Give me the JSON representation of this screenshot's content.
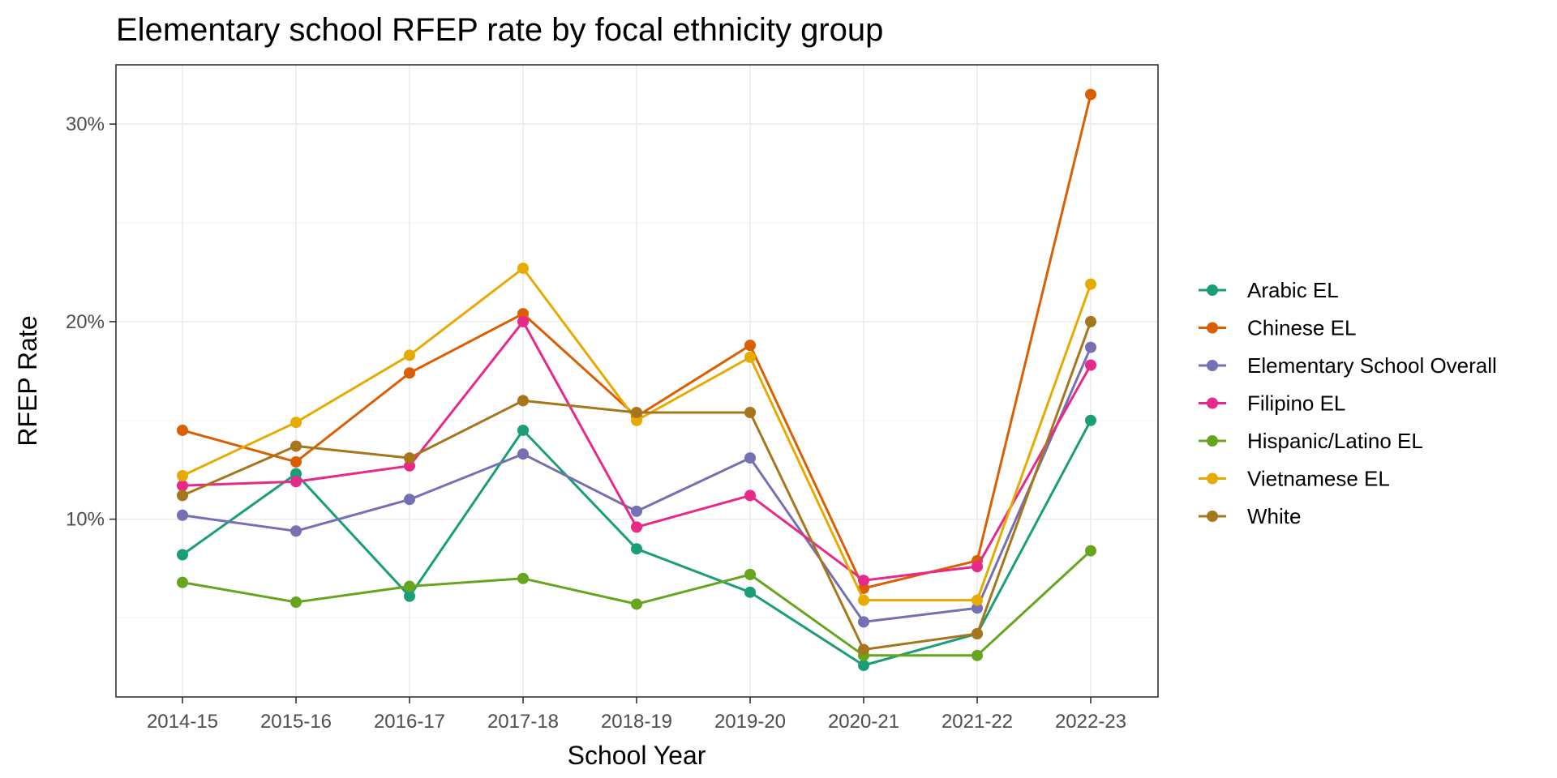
{
  "chart_data": {
    "type": "line",
    "title": "Elementary school RFEP rate by focal ethnicity group",
    "xlabel": "School Year",
    "ylabel": "RFEP Rate",
    "categories": [
      "2014-15",
      "2015-16",
      "2016-17",
      "2017-18",
      "2018-19",
      "2019-20",
      "2020-21",
      "2021-22",
      "2022-23"
    ],
    "ylim": [
      0.01,
      0.33
    ],
    "yticks": [
      0.1,
      0.2,
      0.3
    ],
    "ytick_labels": [
      "10%",
      "20%",
      "30%"
    ],
    "grid": true,
    "legend_position": "right",
    "series": [
      {
        "name": "Arabic EL",
        "color": "#1b9e77",
        "values": [
          0.082,
          0.123,
          0.061,
          0.145,
          0.085,
          0.063,
          0.026,
          0.042,
          0.15
        ]
      },
      {
        "name": "Chinese EL",
        "color": "#d95f02",
        "values": [
          0.145,
          0.129,
          0.174,
          0.204,
          0.152,
          0.188,
          0.065,
          0.079,
          0.315
        ]
      },
      {
        "name": "Elementary School Overall",
        "color": "#7570b3",
        "values": [
          0.102,
          0.094,
          0.11,
          0.133,
          0.104,
          0.131,
          0.048,
          0.055,
          0.187
        ]
      },
      {
        "name": "Filipino EL",
        "color": "#e7298a",
        "values": [
          0.117,
          0.119,
          0.127,
          0.2,
          0.096,
          0.112,
          0.069,
          0.076,
          0.178
        ]
      },
      {
        "name": "Hispanic/Latino EL",
        "color": "#66a61e",
        "values": [
          0.068,
          0.058,
          0.066,
          0.07,
          0.057,
          0.072,
          0.031,
          0.031,
          0.084
        ]
      },
      {
        "name": "Vietnamese EL",
        "color": "#e6ab02",
        "values": [
          0.122,
          0.149,
          0.183,
          0.227,
          0.15,
          0.182,
          0.059,
          0.059,
          0.219
        ]
      },
      {
        "name": "White",
        "color": "#a6761d",
        "values": [
          0.112,
          0.137,
          0.131,
          0.16,
          0.154,
          0.154,
          0.034,
          0.042,
          0.2
        ]
      }
    ]
  }
}
